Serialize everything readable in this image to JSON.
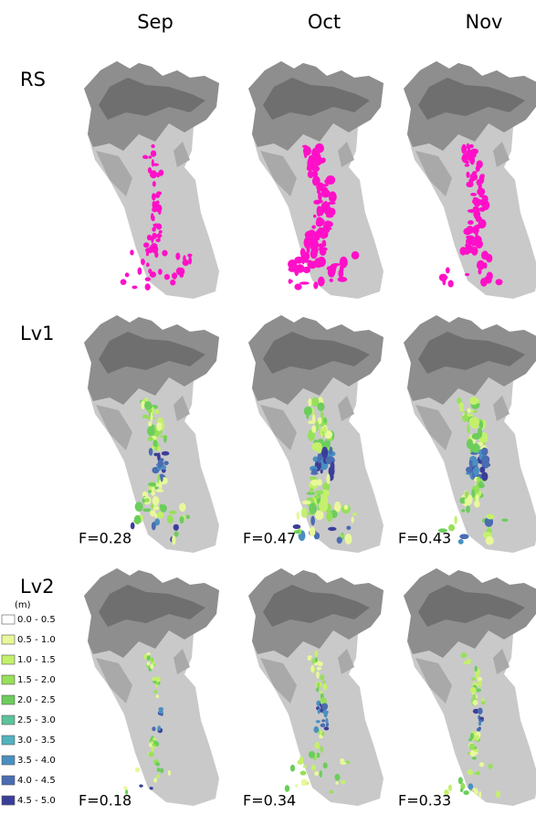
{
  "columns": [
    "Sep",
    "Oct",
    "Nov"
  ],
  "rows": [
    "RS",
    "Lv1",
    "Lv2"
  ],
  "scores": {
    "Lv1": [
      "F=0.28",
      "F=0.47",
      "F=0.43"
    ],
    "Lv2": [
      "F=0.18",
      "F=0.34",
      "F=0.33"
    ]
  },
  "legend": {
    "unit": "(m)",
    "items": [
      {
        "label": "0.0 - 0.5",
        "color": "#ffffff"
      },
      {
        "label": "0.5 - 1.0",
        "color": "#e8f89a"
      },
      {
        "label": "1.0 - 1.5",
        "color": "#c4f06c"
      },
      {
        "label": "1.5 - 2.0",
        "color": "#96e05a"
      },
      {
        "label": "2.0 - 2.5",
        "color": "#6ccd5c"
      },
      {
        "label": "2.5 - 3.0",
        "color": "#5cc39a"
      },
      {
        "label": "3.0 - 3.5",
        "color": "#52b2be"
      },
      {
        "label": "3.5 - 4.0",
        "color": "#4a8fc0"
      },
      {
        "label": "4.0 - 4.5",
        "color": "#4a6cb2"
      },
      {
        "label": "4.5 - 5.0",
        "color": "#3b3e98"
      }
    ]
  }
}
